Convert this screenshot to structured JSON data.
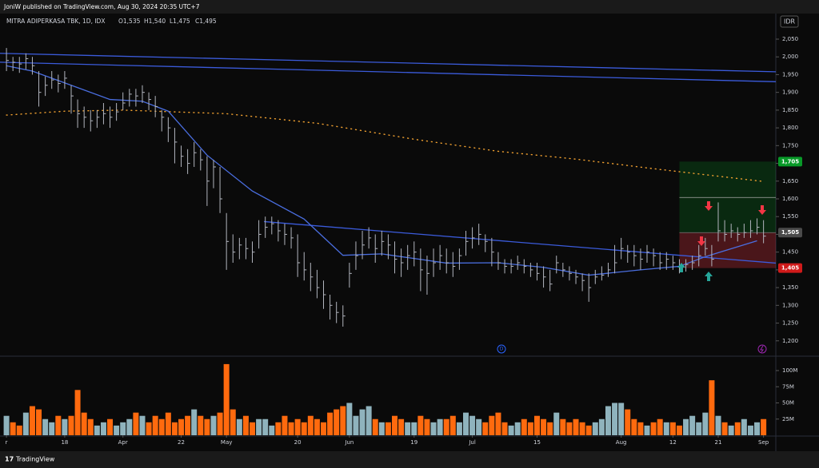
{
  "chart_data": {
    "type": "ohlc",
    "publisher": "JoniW published on TradingView.com, Aug 30, 2024 20:35 UTC+7",
    "title": "MITRA ADIPERKASA TBK, 1D, IDX",
    "ohlc_labels": [
      "O1,535",
      "H1,540",
      "L1,475",
      "C1,495"
    ],
    "currency": "IDR",
    "brand": "TradingView",
    "event_label": "D",
    "xlim": [
      -1,
      118.9
    ],
    "xticks": [
      {
        "value": 0,
        "label": "r"
      },
      {
        "value": 9,
        "label": "18"
      },
      {
        "value": 18,
        "label": "Apr"
      },
      {
        "value": 27,
        "label": "22"
      },
      {
        "value": 34,
        "label": "May"
      },
      {
        "value": 45,
        "label": "20"
      },
      {
        "value": 53,
        "label": "Jun"
      },
      {
        "value": 63,
        "label": "19"
      },
      {
        "value": 72,
        "label": "Jul"
      },
      {
        "value": 82,
        "label": "15"
      },
      {
        "value": 95,
        "label": "Aug"
      },
      {
        "value": 103,
        "label": "12"
      },
      {
        "value": 110,
        "label": "21"
      },
      {
        "value": 117,
        "label": "Sep"
      }
    ],
    "ylim": [
      1159,
      2122
    ],
    "yticks": [
      {
        "value": 1200,
        "label": "1,200"
      },
      {
        "value": 1250,
        "label": "1,250"
      },
      {
        "value": 1300,
        "label": "1,300"
      },
      {
        "value": 1350,
        "label": "1,350"
      },
      {
        "value": 1400,
        "label": "1,400"
      },
      {
        "value": 1450,
        "label": "1,450"
      },
      {
        "value": 1500,
        "label": "1,500"
      },
      {
        "value": 1550,
        "label": "1,550"
      },
      {
        "value": 1600,
        "label": "1,600"
      },
      {
        "value": 1650,
        "label": "1,650"
      },
      {
        "value": 1700,
        "label": "1,700"
      },
      {
        "value": 1750,
        "label": "1,750"
      },
      {
        "value": 1800,
        "label": "1,800"
      },
      {
        "value": 1850,
        "label": "1,850"
      },
      {
        "value": 1900,
        "label": "1,900"
      },
      {
        "value": 1950,
        "label": "1,950"
      },
      {
        "value": 2000,
        "label": "2,000"
      },
      {
        "value": 2050,
        "label": "2,050"
      }
    ],
    "bar_color": "#b2b5be",
    "high": [
      2025,
      2000,
      2000,
      2010,
      2000,
      1960,
      1945,
      1960,
      1950,
      1960,
      1920,
      1880,
      1860,
      1850,
      1850,
      1870,
      1860,
      1870,
      1900,
      1910,
      1910,
      1920,
      1900,
      1890,
      1850,
      1830,
      1800,
      1750,
      1740,
      1760,
      1740,
      1720,
      1710,
      1690,
      1560,
      1500,
      1490,
      1490,
      1480,
      1540,
      1550,
      1550,
      1540,
      1530,
      1520,
      1500,
      1450,
      1420,
      1400,
      1370,
      1330,
      1310,
      1300,
      1420,
      1480,
      1510,
      1520,
      1500,
      1510,
      1500,
      1480,
      1460,
      1470,
      1480,
      1460,
      1440,
      1460,
      1470,
      1460,
      1450,
      1460,
      1510,
      1520,
      1530,
      1500,
      1490,
      1450,
      1430,
      1430,
      1440,
      1430,
      1420,
      1420,
      1410,
      1400,
      1440,
      1420,
      1410,
      1400,
      1390,
      1390,
      1400,
      1410,
      1420,
      1470,
      1490,
      1470,
      1470,
      1460,
      1470,
      1460,
      1450,
      1450,
      1440,
      1430,
      1430,
      1440,
      1470,
      1490,
      1470,
      1590,
      1540,
      1530,
      1520,
      1530,
      1540,
      1545,
      1540
    ],
    "low": [
      1960,
      1960,
      1955,
      1965,
      1950,
      1860,
      1890,
      1910,
      1900,
      1910,
      1840,
      1800,
      1800,
      1790,
      1800,
      1810,
      1800,
      1820,
      1850,
      1860,
      1860,
      1870,
      1850,
      1830,
      1790,
      1760,
      1700,
      1690,
      1670,
      1690,
      1680,
      1580,
      1630,
      1560,
      1400,
      1420,
      1430,
      1430,
      1420,
      1460,
      1490,
      1500,
      1480,
      1470,
      1460,
      1380,
      1370,
      1340,
      1320,
      1290,
      1260,
      1250,
      1240,
      1350,
      1400,
      1430,
      1460,
      1420,
      1440,
      1430,
      1390,
      1380,
      1400,
      1410,
      1340,
      1330,
      1380,
      1400,
      1390,
      1380,
      1400,
      1440,
      1460,
      1470,
      1450,
      1410,
      1400,
      1390,
      1390,
      1400,
      1390,
      1380,
      1370,
      1350,
      1340,
      1390,
      1380,
      1370,
      1360,
      1340,
      1310,
      1360,
      1370,
      1380,
      1390,
      1430,
      1420,
      1410,
      1400,
      1420,
      1410,
      1400,
      1400,
      1400,
      1390,
      1395,
      1400,
      1410,
      1440,
      1410,
      1480,
      1480,
      1490,
      1480,
      1490,
      1490,
      1500,
      1475
    ],
    "close": [
      1990,
      1985,
      1980,
      1995,
      1975,
      1900,
      1920,
      1935,
      1925,
      1940,
      1890,
      1840,
      1830,
      1820,
      1830,
      1840,
      1830,
      1845,
      1870,
      1895,
      1890,
      1900,
      1880,
      1860,
      1830,
      1800,
      1760,
      1720,
      1700,
      1730,
      1710,
      1650,
      1690,
      1600,
      1480,
      1450,
      1470,
      1460,
      1450,
      1500,
      1520,
      1530,
      1510,
      1500,
      1490,
      1420,
      1400,
      1380,
      1350,
      1330,
      1300,
      1280,
      1270,
      1390,
      1440,
      1470,
      1490,
      1460,
      1480,
      1470,
      1430,
      1420,
      1440,
      1450,
      1400,
      1390,
      1420,
      1440,
      1420,
      1410,
      1440,
      1480,
      1490,
      1500,
      1480,
      1450,
      1420,
      1410,
      1410,
      1420,
      1410,
      1400,
      1390,
      1380,
      1360,
      1420,
      1400,
      1390,
      1380,
      1370,
      1350,
      1380,
      1385,
      1400,
      1420,
      1460,
      1450,
      1440,
      1430,
      1450,
      1440,
      1420,
      1430,
      1420,
      1410,
      1415,
      1420,
      1440,
      1460,
      1430,
      1510,
      1500,
      1510,
      1500,
      1505,
      1510,
      1520,
      1495
    ],
    "ma_fast": {
      "color": "#4a6ee0",
      "x": [
        0,
        4,
        10,
        16,
        21,
        25,
        31,
        38,
        46,
        52,
        58,
        68,
        76,
        83,
        90,
        98,
        104,
        108,
        116
      ],
      "values": [
        1975,
        1960,
        1920,
        1880,
        1875,
        1847,
        1723,
        1622,
        1543,
        1441,
        1445,
        1419,
        1420,
        1407,
        1385,
        1400,
        1410,
        1437,
        1482
      ]
    },
    "ma_slow": {
      "color": "#f0a030",
      "x": [
        0,
        9,
        18,
        34,
        48,
        63,
        76,
        88,
        100,
        117
      ],
      "values": [
        1836,
        1847,
        1850,
        1840,
        1813,
        1768,
        1734,
        1712,
        1685,
        1649
      ]
    },
    "trendlines": {
      "color": "#3b5bdb",
      "lines": [
        {
          "x": [
            -1,
            118.9
          ],
          "values": [
            2010,
            1958
          ]
        },
        {
          "x": [
            -1,
            118.9
          ],
          "values": [
            1985,
            1930
          ]
        },
        {
          "x": [
            39.8,
            118.9
          ],
          "values": [
            1536,
            1419
          ]
        }
      ]
    },
    "position": {
      "start": 104,
      "midline": 1604,
      "target": {
        "value": 1705,
        "label": "1,705"
      },
      "entry": {
        "value": 1505,
        "label": "1,505"
      },
      "stop": {
        "value": 1405,
        "label": "1,405"
      }
    },
    "volume": {
      "ylim": [
        0,
        121
      ],
      "yticks": [
        {
          "value": 25,
          "label": "25M"
        },
        {
          "value": 50,
          "label": "50M"
        },
        {
          "value": 75,
          "label": "75M"
        },
        {
          "value": 100,
          "label": "100M"
        }
      ],
      "up_color": "#8fb3bd",
      "down_color": "#ff6a0e",
      "values": [
        30,
        20,
        15,
        35,
        45,
        40,
        25,
        20,
        30,
        25,
        30,
        70,
        35,
        25,
        15,
        20,
        25,
        15,
        20,
        25,
        35,
        30,
        20,
        30,
        25,
        35,
        20,
        25,
        30,
        40,
        30,
        25,
        30,
        35,
        110,
        40,
        25,
        30,
        20,
        25,
        25,
        15,
        20,
        30,
        20,
        25,
        20,
        30,
        25,
        20,
        35,
        40,
        45,
        50,
        30,
        40,
        45,
        25,
        20,
        20,
        30,
        25,
        20,
        20,
        30,
        25,
        20,
        25,
        25,
        30,
        20,
        35,
        30,
        25,
        20,
        30,
        35,
        20,
        15,
        20,
        25,
        20,
        30,
        25,
        20,
        35,
        25,
        20,
        25,
        20,
        15,
        20,
        25,
        45,
        50,
        50,
        40,
        25,
        20,
        15,
        20,
        25,
        20,
        20,
        15,
        25,
        30,
        20,
        35,
        85,
        30,
        20,
        15,
        20,
        25,
        15,
        20,
        25
      ]
    }
  }
}
